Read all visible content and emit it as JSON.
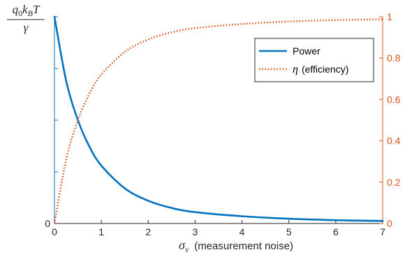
{
  "chart_data": {
    "type": "line",
    "title": "",
    "xlabel": {
      "symbol": "σ",
      "subscript": "v",
      "text": "(measurement noise)"
    },
    "ylabel_left": {
      "numerator": [
        "q",
        "0",
        "k",
        "B",
        "T"
      ],
      "denominator": "γ"
    },
    "ylabel_right": "",
    "xlim": [
      0,
      7
    ],
    "ylim_left": [
      0,
      1
    ],
    "ylim_right": [
      0,
      1
    ],
    "x_ticks": [
      "0",
      "1",
      "2",
      "3",
      "4",
      "5",
      "6",
      "7"
    ],
    "y_left_ticks": [
      "0"
    ],
    "y_right_ticks": [
      "0",
      "0.2",
      "0.4",
      "0.6",
      "0.8",
      "1"
    ],
    "grid": false,
    "legend_position": "top-right",
    "series": [
      {
        "name": "Power",
        "axis": "left",
        "color": "#0072BD",
        "style": "solid",
        "x": [
          0,
          0.25,
          0.5,
          0.75,
          1,
          1.5,
          2,
          2.5,
          3,
          4,
          5,
          6,
          7
        ],
        "y": [
          1.0,
          0.69,
          0.5,
          0.37,
          0.28,
          0.17,
          0.11,
          0.075,
          0.055,
          0.035,
          0.023,
          0.016,
          0.012
        ]
      },
      {
        "name": "η (efficiency)",
        "name_symbol": "η",
        "name_text": "(efficiency)",
        "axis": "right",
        "color": "#D95319",
        "style": "dotted",
        "x": [
          0,
          0.25,
          0.5,
          0.75,
          1,
          1.5,
          2,
          2.5,
          3,
          4,
          5,
          6,
          7
        ],
        "y": [
          0,
          0.31,
          0.5,
          0.63,
          0.72,
          0.83,
          0.89,
          0.925,
          0.945,
          0.965,
          0.977,
          0.984,
          0.988
        ]
      }
    ]
  }
}
